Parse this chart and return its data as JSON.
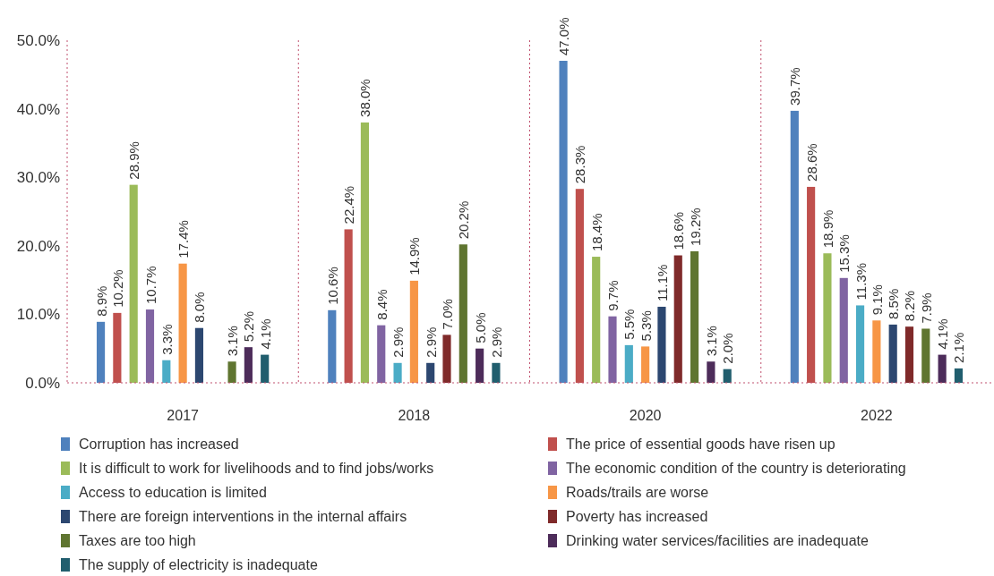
{
  "chart_data": {
    "type": "bar",
    "categories": [
      "2017",
      "2018",
      "2020",
      "2022"
    ],
    "ylim": [
      0,
      50
    ],
    "yticks": [
      {
        "value": 0,
        "label": "0.0%"
      },
      {
        "value": 10,
        "label": "10.0%"
      },
      {
        "value": 20,
        "label": "20.0%"
      },
      {
        "value": 30,
        "label": "30.0%"
      },
      {
        "value": 40,
        "label": "40.0%"
      },
      {
        "value": 50,
        "label": "50.0%"
      }
    ],
    "grid": false,
    "legend": "bottom",
    "series": [
      {
        "name": "Corruption has increased",
        "color": "#4f81bd",
        "values": [
          8.9,
          10.6,
          47.0,
          39.7
        ],
        "value_labels": [
          "8.9%",
          "10.6%",
          "47.0%",
          "39.7%"
        ]
      },
      {
        "name": "The price of essential goods have risen up",
        "color": "#c0504d",
        "values": [
          10.2,
          22.4,
          28.3,
          28.6
        ],
        "value_labels": [
          "10.2%",
          "22.4%",
          "28.3%",
          "28.6%"
        ]
      },
      {
        "name": "It is difficult to work for livelihoods and to find jobs/works",
        "color": "#9bbb59",
        "values": [
          28.9,
          38.0,
          18.4,
          18.9
        ],
        "value_labels": [
          "28.9%",
          "38.0%",
          "18.4%",
          "18.9%"
        ]
      },
      {
        "name": "The economic condition of the country is deteriorating",
        "color": "#8064a2",
        "values": [
          10.7,
          8.4,
          9.7,
          15.3
        ],
        "value_labels": [
          "10.7%",
          "8.4%",
          "9.7%",
          "15.3%"
        ]
      },
      {
        "name": "Access to education is limited",
        "color": "#4bacc6",
        "values": [
          3.3,
          2.9,
          5.5,
          11.3
        ],
        "value_labels": [
          "3.3%",
          "2.9%",
          "5.5%",
          "11.3%"
        ]
      },
      {
        "name": "Roads/trails are worse",
        "color": "#f79646",
        "values": [
          17.4,
          14.9,
          5.3,
          9.1
        ],
        "value_labels": [
          "17.4%",
          "14.9%",
          "5.3%",
          "9.1%"
        ]
      },
      {
        "name": "There are foreign interventions in the internal affairs",
        "color": "#2c4770",
        "values": [
          8.0,
          2.9,
          11.1,
          8.5
        ],
        "value_labels": [
          "8.0%",
          "2.9%",
          "11.1%",
          "8.5%"
        ]
      },
      {
        "name": "Poverty has increased",
        "color": "#7f2a2a",
        "values": [
          null,
          7.0,
          18.6,
          8.2
        ],
        "value_labels": [
          null,
          "7.0%",
          "18.6%",
          "8.2%"
        ]
      },
      {
        "name": "Taxes are too high",
        "color": "#5f7530",
        "values": [
          3.1,
          20.2,
          19.2,
          7.9
        ],
        "value_labels": [
          "3.1%",
          "20.2%",
          "19.2%",
          "7.9%"
        ]
      },
      {
        "name": "Drinking water services/facilities are inadequate",
        "color": "#4d2c5a",
        "values": [
          5.2,
          5.0,
          3.1,
          4.1
        ],
        "value_labels": [
          "5.2%",
          "5.0%",
          "3.1%",
          "4.1%"
        ]
      },
      {
        "name": "The supply of electricity is inadequate",
        "color": "#215e6e",
        "values": [
          4.1,
          2.9,
          2.0,
          2.1
        ],
        "value_labels": [
          "4.1%",
          "2.9%",
          "2.0%",
          "2.1%"
        ]
      }
    ]
  }
}
